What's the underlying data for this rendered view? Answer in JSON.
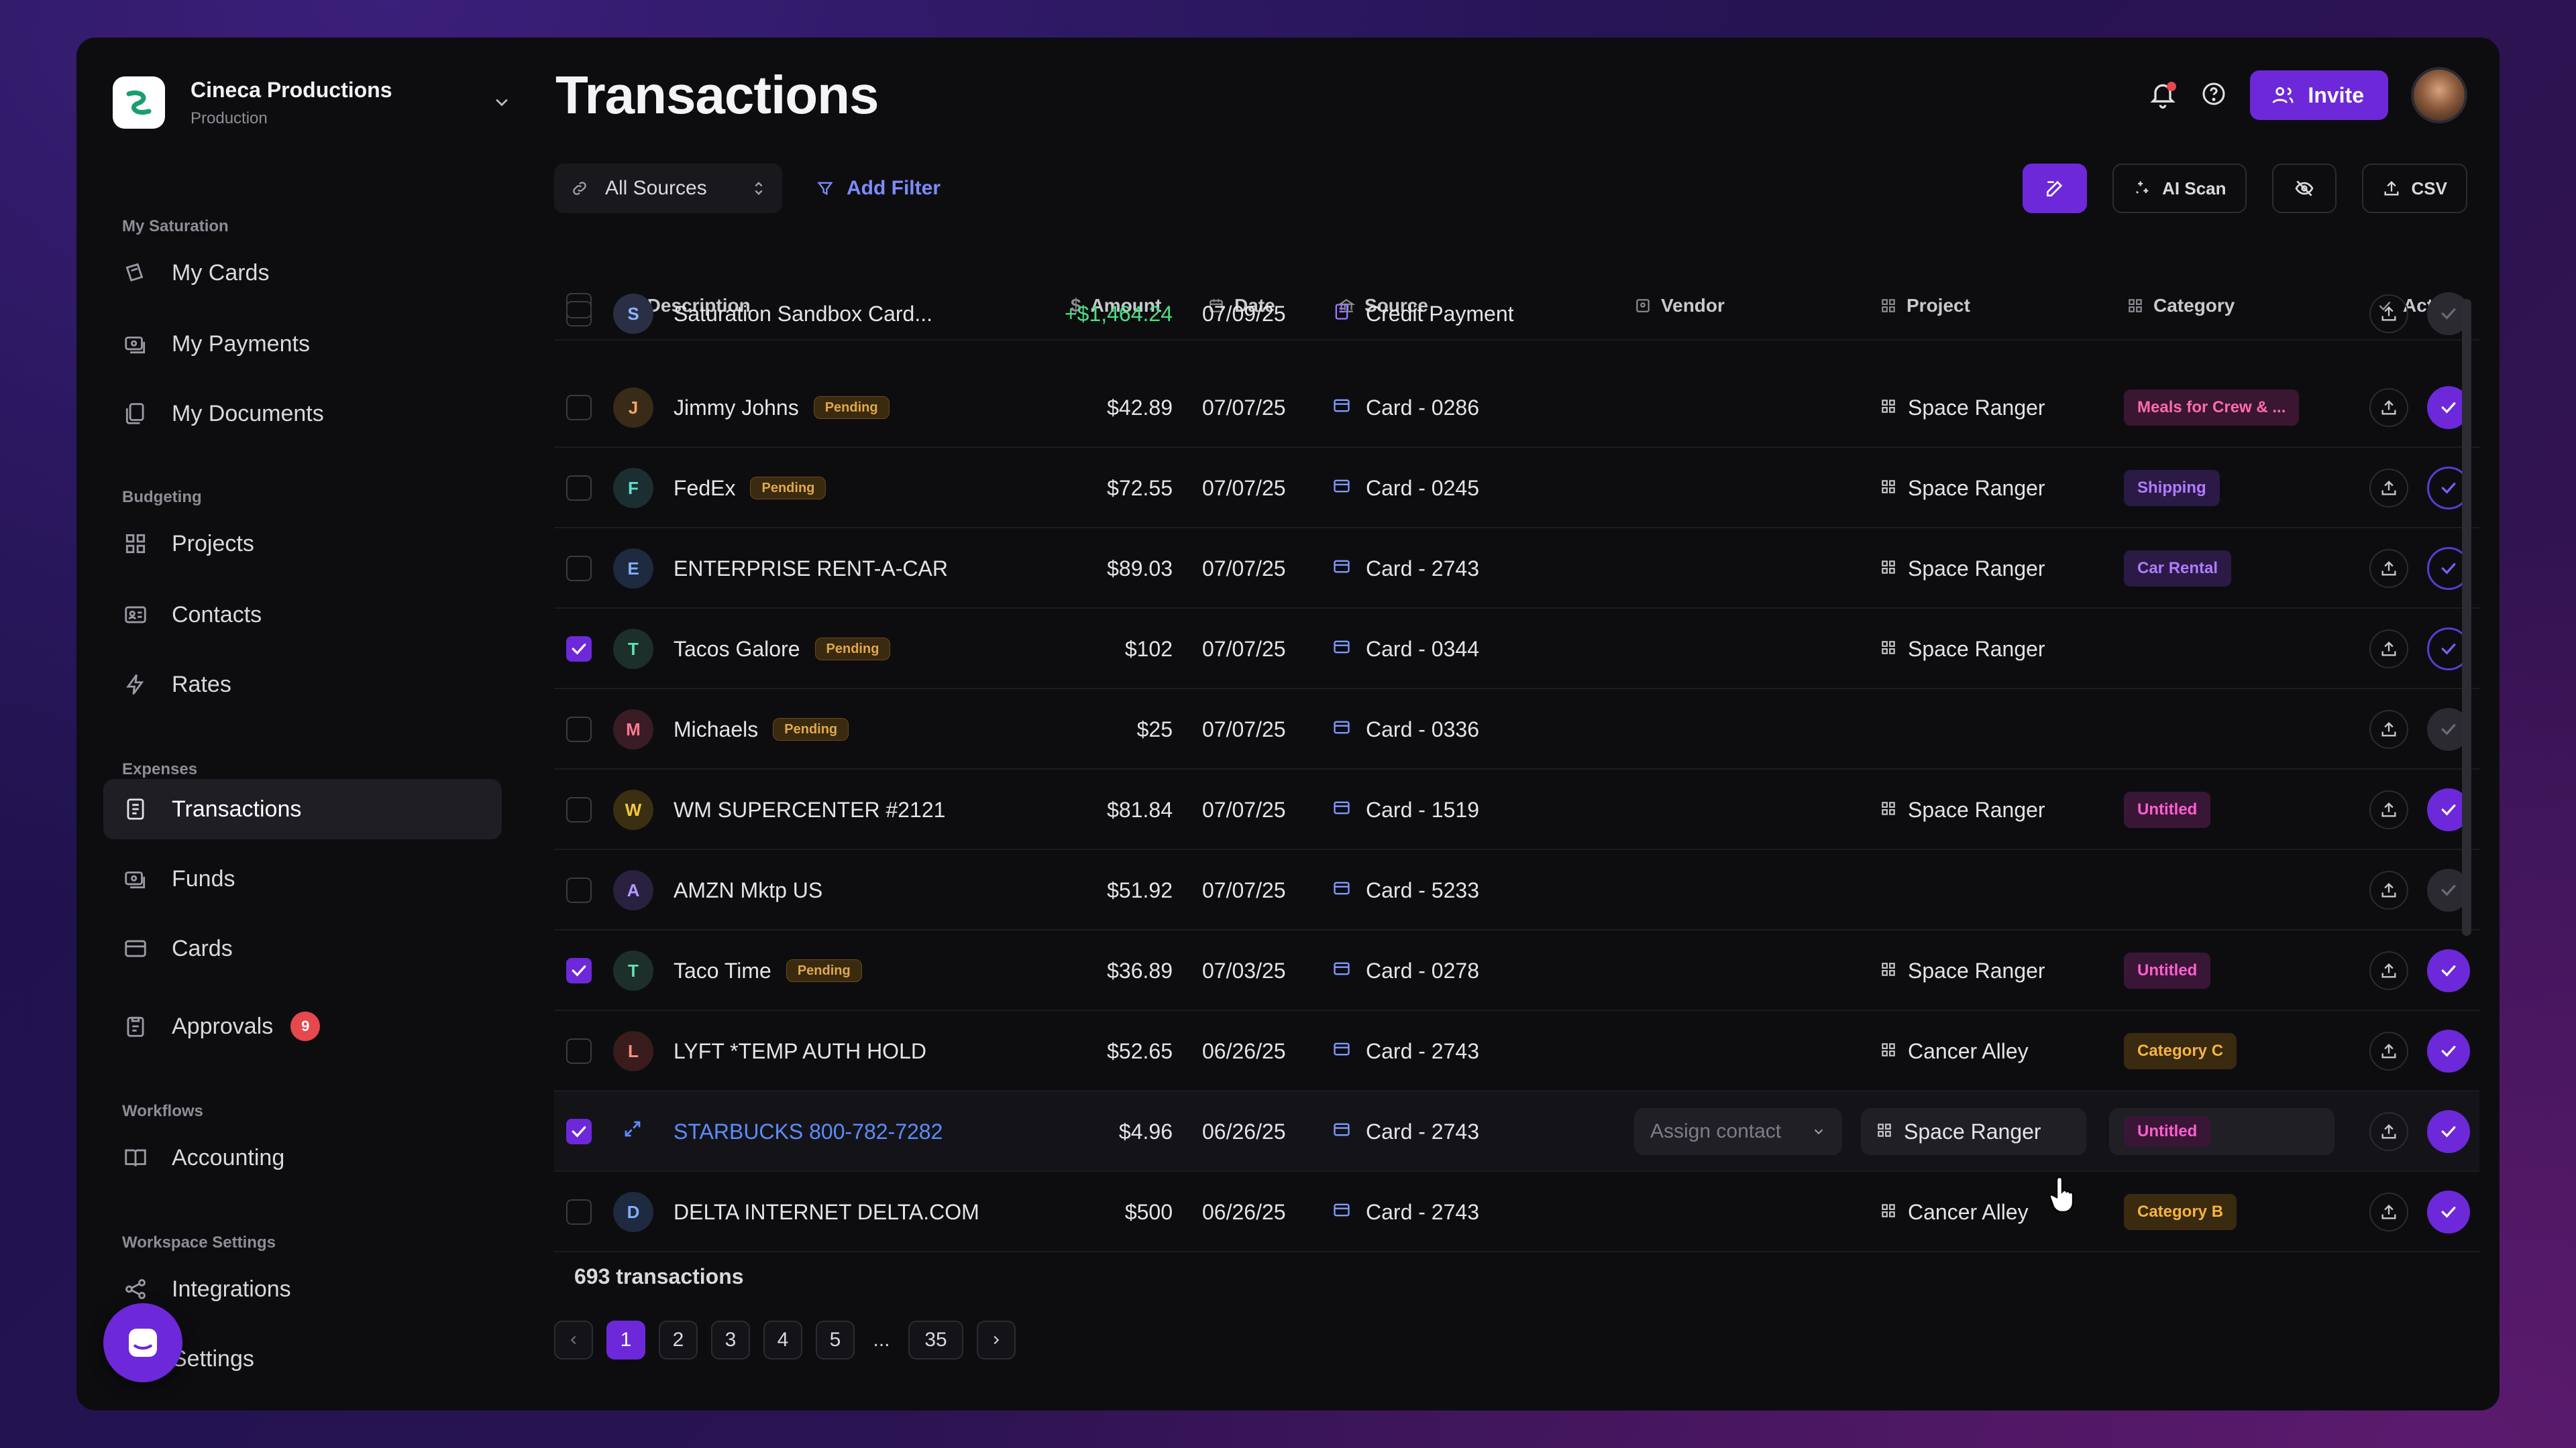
{
  "org": {
    "name": "Cineca Productions",
    "sub": "Production"
  },
  "sidebar": {
    "sections": [
      {
        "title": "My Saturation",
        "items": [
          "My Cards",
          "My Payments",
          "My Documents"
        ]
      },
      {
        "title": "Budgeting",
        "items": [
          "Projects",
          "Contacts",
          "Rates"
        ]
      },
      {
        "title": "Expenses",
        "items": [
          "Transactions",
          "Funds",
          "Cards",
          "Approvals"
        ]
      },
      {
        "title": "Workflows",
        "items": [
          "Accounting"
        ]
      },
      {
        "title": "Workspace Settings",
        "items": [
          "Integrations",
          "Settings"
        ]
      }
    ],
    "approvals_badge": "9",
    "active": "Transactions"
  },
  "page": {
    "title": "Transactions"
  },
  "header": {
    "invite": "Invite"
  },
  "toolbar": {
    "source": "All Sources",
    "add_filter": "Add Filter",
    "ai_scan": "AI Scan",
    "csv": "CSV"
  },
  "columns": {
    "description": "Description",
    "amount": "Amount",
    "date": "Date",
    "source": "Source",
    "vendor": "Vendor",
    "project": "Project",
    "category": "Category",
    "action": "Action"
  },
  "rows": [
    {
      "initial": "S",
      "desc": "Saturation Sandbox Card...",
      "pending": "",
      "amount": "+$1,464.24",
      "date": "07/09/25",
      "source": "Credit Payment",
      "project": "",
      "category": "",
      "checked": false,
      "action": "muted"
    },
    {
      "initial": "J",
      "desc": "Jimmy Johns",
      "pending": "Pending",
      "amount": "$42.89",
      "date": "07/07/25",
      "source": "Card - 0286",
      "project": "Space Ranger",
      "category": "Meals for Crew & ...",
      "checked": false,
      "action": "full"
    },
    {
      "initial": "F",
      "desc": "FedEx",
      "pending": "Pending",
      "amount": "$72.55",
      "date": "07/07/25",
      "source": "Card - 0245",
      "project": "Space Ranger",
      "category": "Shipping",
      "checked": false,
      "action": "ring"
    },
    {
      "initial": "E",
      "desc": "ENTERPRISE RENT-A-CAR",
      "pending": "",
      "amount": "$89.03",
      "date": "07/07/25",
      "source": "Card - 2743",
      "project": "Space Ranger",
      "category": "Car Rental",
      "checked": false,
      "action": "ring"
    },
    {
      "initial": "T",
      "desc": "Tacos Galore",
      "pending": "Pending",
      "amount": "$102",
      "date": "07/07/25",
      "source": "Card - 0344",
      "project": "Space Ranger",
      "category": "",
      "checked": true,
      "action": "ring"
    },
    {
      "initial": "M",
      "desc": "Michaels",
      "pending": "Pending",
      "amount": "$25",
      "date": "07/07/25",
      "source": "Card - 0336",
      "project": "",
      "category": "",
      "checked": false,
      "action": "muted"
    },
    {
      "initial": "W",
      "desc": "WM SUPERCENTER #2121",
      "pending": "",
      "amount": "$81.84",
      "date": "07/07/25",
      "source": "Card - 1519",
      "project": "Space Ranger",
      "category": "Untitled",
      "checked": false,
      "action": "full"
    },
    {
      "initial": "A",
      "desc": "AMZN Mktp US",
      "pending": "",
      "amount": "$51.92",
      "date": "07/07/25",
      "source": "Card - 5233",
      "project": "",
      "category": "",
      "checked": false,
      "action": "muted"
    },
    {
      "initial": "T",
      "desc": "Taco Time",
      "pending": "Pending",
      "amount": "$36.89",
      "date": "07/03/25",
      "source": "Card - 0278",
      "project": "Space Ranger",
      "category": "Untitled",
      "checked": true,
      "action": "full"
    },
    {
      "initial": "L",
      "desc": "LYFT *TEMP AUTH HOLD",
      "pending": "",
      "amount": "$52.65",
      "date": "06/26/25",
      "source": "Card - 2743",
      "project": "Cancer Alley",
      "category": "Category C",
      "checked": false,
      "action": "full"
    },
    {
      "initial": "",
      "desc": "STARBUCKS 800-782-7282",
      "pending": "",
      "amount": "$4.96",
      "date": "06/26/25",
      "source": "Card - 2743",
      "project": "Space Ranger",
      "category": "Untitled",
      "checked": true,
      "action": "full",
      "vendor_placeholder": "Assign contact"
    },
    {
      "initial": "D",
      "desc": "DELTA INTERNET DELTA.COM",
      "pending": "",
      "amount": "$500",
      "date": "06/26/25",
      "source": "Card - 2743",
      "project": "Cancer Alley",
      "category": "Category B",
      "checked": false,
      "action": "full"
    }
  ],
  "footer": {
    "count": "693 transactions",
    "pages": [
      "1",
      "2",
      "3",
      "4",
      "5",
      "...",
      "35"
    ],
    "current_page": "1"
  },
  "colors": {
    "accent": "#6d28d9",
    "positive": "#4ade80",
    "pending": "#e0a84c",
    "link": "#5b8cff"
  }
}
